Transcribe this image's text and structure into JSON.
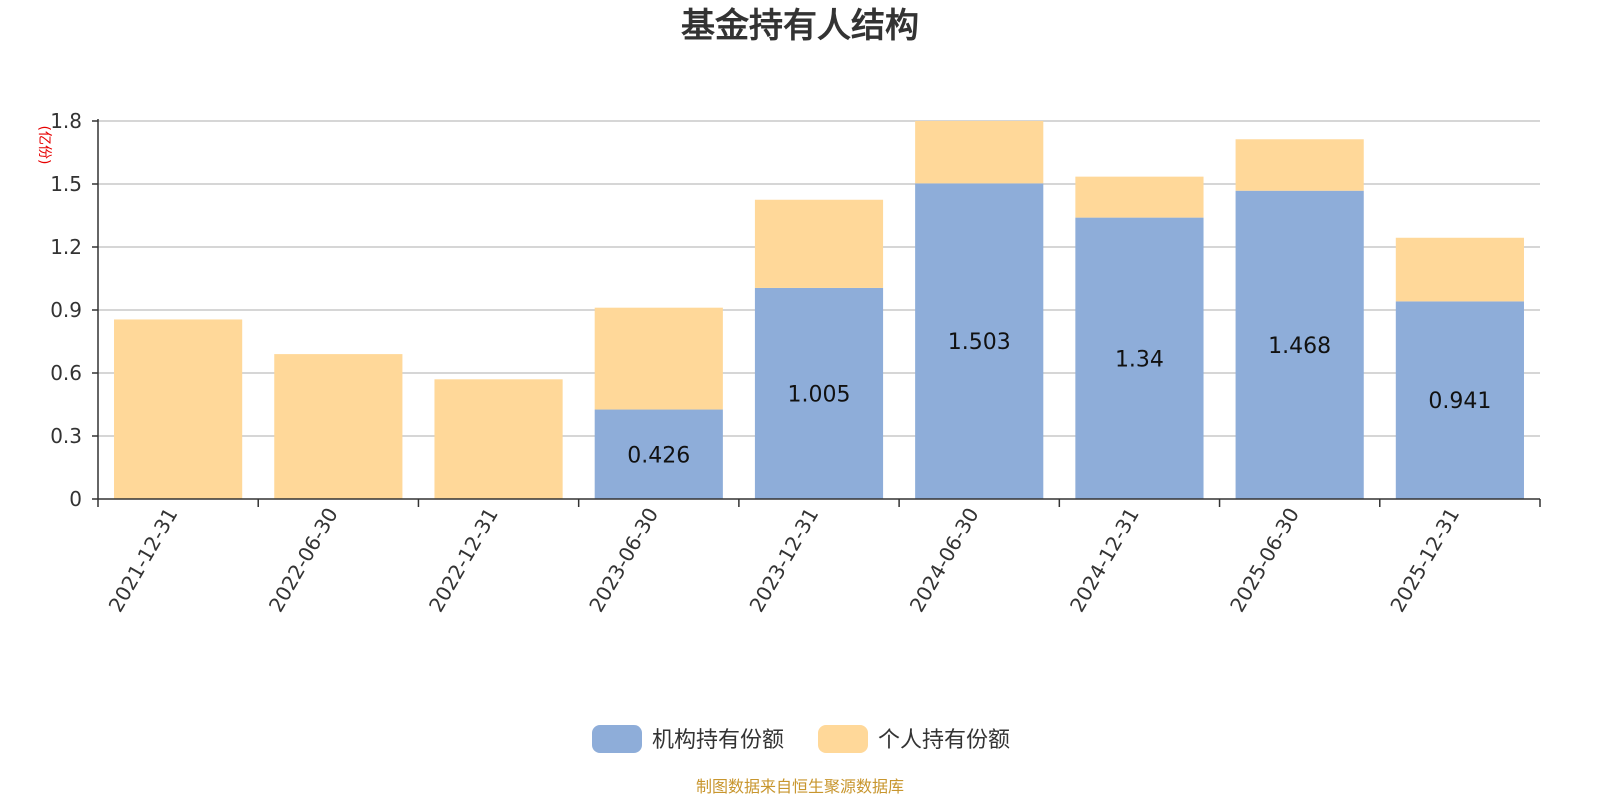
{
  "chart_data": {
    "type": "bar",
    "stacked": true,
    "title": "基金持有人结构",
    "unit_label": "(亿份)",
    "categories": [
      "2021-12-31",
      "2022-06-30",
      "2022-12-31",
      "2023-06-30",
      "2023-12-31",
      "2024-06-30",
      "2024-12-31",
      "2025-06-30",
      "2025-12-31"
    ],
    "series": [
      {
        "name": "机构持有份额",
        "color": "#8eadd9",
        "values": [
          0,
          0,
          0,
          0.426,
          1.005,
          1.503,
          1.34,
          1.468,
          0.941
        ],
        "labels": [
          "",
          "",
          "",
          "0.426",
          "1.005",
          "1.503",
          "1.34",
          "1.468",
          "0.941"
        ]
      },
      {
        "name": "个人持有份额",
        "color": "#ffd899",
        "values": [
          0.855,
          0.69,
          0.57,
          0.485,
          0.42,
          0.297,
          0.195,
          0.245,
          0.303
        ]
      }
    ],
    "ylim": [
      0,
      1.8
    ],
    "yticks": [
      "0",
      "0.3",
      "0.6",
      "0.9",
      "1.2",
      "1.5",
      "1.8"
    ],
    "grid": true,
    "legend_position": "bottom-center",
    "source": "制图数据来自恒生聚源数据库"
  }
}
